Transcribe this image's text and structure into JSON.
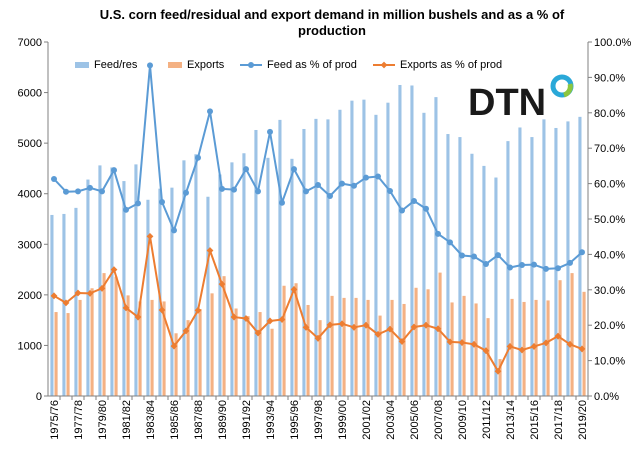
{
  "chart_data": {
    "type": "bar",
    "title_line1": "U.S. corn feed/residual and export demand in million bushels and as a % of",
    "title_line2": "production",
    "categories": [
      "1975/76",
      "1976/77",
      "1977/78",
      "1978/79",
      "1979/80",
      "1980/81",
      "1981/82",
      "1982/83",
      "1983/84",
      "1984/85",
      "1985/86",
      "1986/87",
      "1987/88",
      "1988/89",
      "1989/90",
      "1990/91",
      "1991/92",
      "1992/93",
      "1993/94",
      "1994/95",
      "1995/96",
      "1996/97",
      "1997/98",
      "1998/99",
      "1999/00",
      "2000/01",
      "2001/02",
      "2002/03",
      "2003/04",
      "2004/05",
      "2005/06",
      "2006/07",
      "2007/08",
      "2008/09",
      "2009/10",
      "2010/11",
      "2011/12",
      "2012/13",
      "2013/14",
      "2014/15",
      "2015/16",
      "2016/17",
      "2017/18",
      "2018/19",
      "2019/20"
    ],
    "tick_labels": [
      "1975/76",
      "1977/78",
      "1979/80",
      "1981/82",
      "1983/84",
      "1985/86",
      "1987/88",
      "1989/90",
      "1991/92",
      "1993/94",
      "1995/96",
      "1997/98",
      "1999/00",
      "2001/02",
      "2003/04",
      "2005/06",
      "2007/08",
      "2009/10",
      "2011/12",
      "2013/14",
      "2015/16",
      "2017/18",
      "2019/20"
    ],
    "ylim_left": [
      0,
      7000
    ],
    "ylim_right": [
      0,
      100
    ],
    "yticks_left": [
      "0",
      "1000",
      "2000",
      "3000",
      "4000",
      "5000",
      "6000",
      "7000"
    ],
    "yticks_right": [
      "0.0%",
      "10.0%",
      "20.0%",
      "30.0%",
      "40.0%",
      "50.0%",
      "60.0%",
      "70.0%",
      "80.0%",
      "90.0%",
      "100.0%"
    ],
    "grid": false,
    "legend_position": "top",
    "logo": "DTN",
    "series": [
      {
        "name": "Feed/res",
        "kind": "bar",
        "axis": "left",
        "color": "#9dc3e6",
        "values": [
          3580,
          3600,
          3720,
          4280,
          4560,
          4520,
          4250,
          4580,
          3880,
          4100,
          4120,
          4660,
          4780,
          3940,
          4380,
          4620,
          4800,
          5260,
          4710,
          5460,
          4690,
          5280,
          5480,
          5470,
          5660,
          5840,
          5860,
          5560,
          5800,
          6150,
          6140,
          5600,
          5910,
          5180,
          5120,
          4790,
          4550,
          4320,
          5040,
          5310,
          5120,
          5470,
          5300,
          5430,
          5520
        ]
      },
      {
        "name": "Exports",
        "kind": "bar",
        "axis": "left",
        "color": "#f4b183",
        "values": [
          1660,
          1640,
          1900,
          2130,
          2430,
          2360,
          1990,
          1870,
          1900,
          1870,
          1240,
          1500,
          1720,
          2030,
          2370,
          1730,
          1580,
          1660,
          1330,
          2180,
          2230,
          1800,
          1500,
          1980,
          1940,
          1940,
          1900,
          1590,
          1900,
          1820,
          2140,
          2110,
          2440,
          1850,
          1980,
          1830,
          1540,
          730,
          1920,
          1860,
          1900,
          1890,
          2290,
          2430,
          2060
        ]
      },
      {
        "name": "Feed as % of prod",
        "kind": "line",
        "axis": "right",
        "color": "#5b9bd5",
        "values": [
          61.3,
          57.7,
          57.8,
          58.8,
          57.8,
          63.8,
          52.6,
          54.4,
          93.4,
          54.8,
          46.8,
          57.4,
          67.3,
          80.4,
          58.5,
          58.3,
          64.1,
          57.8,
          74.6,
          54.6,
          64.1,
          57.8,
          59.6,
          56.5,
          60.0,
          59.4,
          61.7,
          62.0,
          57.9,
          52.4,
          55.1,
          52.9,
          45.8,
          43.4,
          39.7,
          39.4,
          37.3,
          39.8,
          36.3,
          37.0,
          37.1,
          35.9,
          36.1,
          37.6,
          40.6
        ]
      },
      {
        "name": "Exports as % of prod",
        "kind": "line",
        "axis": "right",
        "color": "#ed7d31",
        "values": [
          28.3,
          26.3,
          29.1,
          29.0,
          30.4,
          35.7,
          24.9,
          22.3,
          45.1,
          24.3,
          14.1,
          18.4,
          24.2,
          41.1,
          31.6,
          22.3,
          21.9,
          17.8,
          21.2,
          21.6,
          30.1,
          19.4,
          16.3,
          20.1,
          20.4,
          19.4,
          20.0,
          17.4,
          18.9,
          15.4,
          19.5,
          20.0,
          19.0,
          15.3,
          15.1,
          14.6,
          12.8,
          7.0,
          14.0,
          13.0,
          14.0,
          15.0,
          16.9,
          14.6,
          13.3
        ]
      }
    ]
  }
}
